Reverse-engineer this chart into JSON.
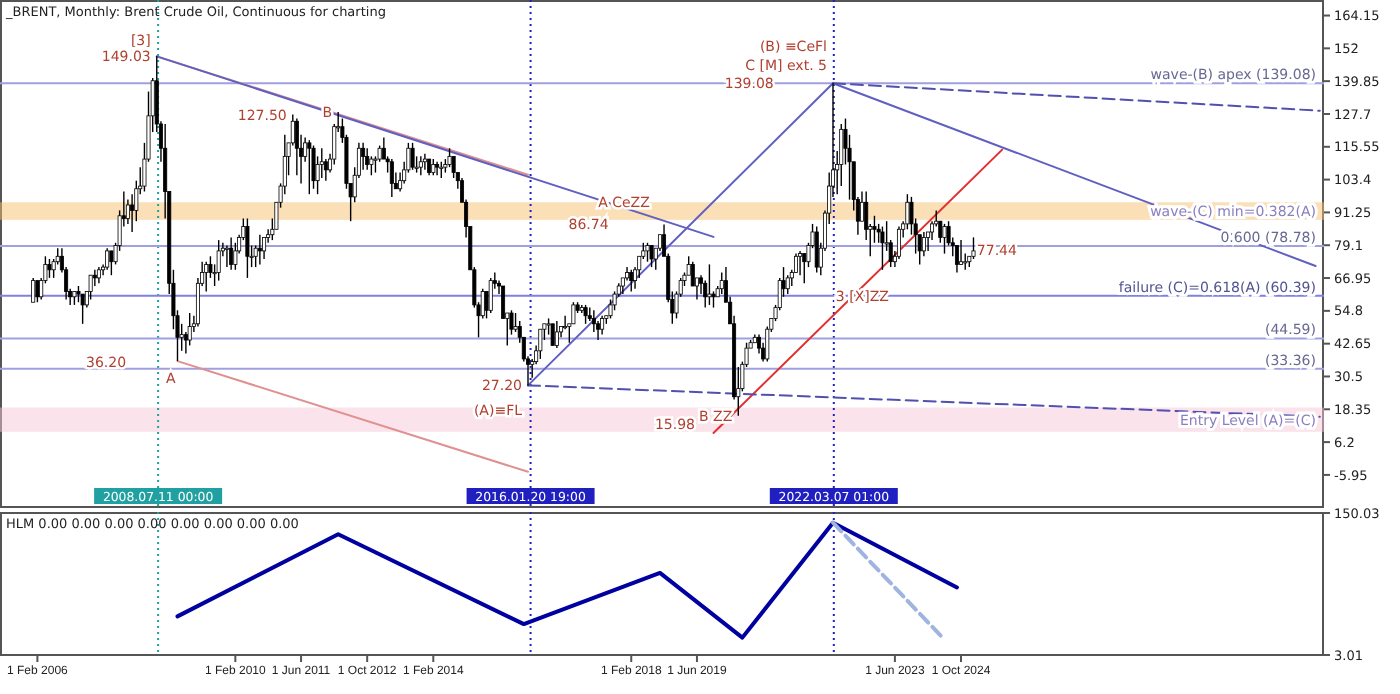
{
  "chart_data": [
    {
      "type": "candlestick",
      "title": "_BRENT, Monthly: Brent Crude Oil, Continuous for charting",
      "color": "#000000",
      "xlim": [
        "2005-05-01",
        "2032-02-01"
      ],
      "ylim": [
        -18.2,
        169.9
      ],
      "yticks": [
        164.15,
        152.0,
        139.85,
        127.7,
        115.55,
        103.4,
        91.25,
        79.1,
        66.95,
        54.8,
        42.65,
        30.5,
        18.35,
        6.2,
        -5.95
      ],
      "tick_labels": "y",
      "x": [
        "2006-01",
        "2006-02",
        "2006-03",
        "2006-04",
        "2006-05",
        "2006-06",
        "2006-07",
        "2006-08",
        "2006-09",
        "2006-10",
        "2006-11",
        "2006-12",
        "2007-01",
        "2007-02",
        "2007-03",
        "2007-04",
        "2007-05",
        "2007-06",
        "2007-07",
        "2007-08",
        "2007-09",
        "2007-10",
        "2007-11",
        "2007-12",
        "2008-01",
        "2008-02",
        "2008-03",
        "2008-04",
        "2008-05",
        "2008-06",
        "2008-07",
        "2008-08",
        "2008-09",
        "2008-10",
        "2008-11",
        "2008-12",
        "2009-01",
        "2009-02",
        "2009-03",
        "2009-04",
        "2009-05",
        "2009-06",
        "2009-07",
        "2009-08",
        "2009-09",
        "2009-10",
        "2009-11",
        "2009-12",
        "2010-01",
        "2010-02",
        "2010-03",
        "2010-04",
        "2010-05",
        "2010-06",
        "2010-07",
        "2010-08",
        "2010-09",
        "2010-10",
        "2010-11",
        "2010-12",
        "2011-01",
        "2011-02",
        "2011-03",
        "2011-04",
        "2011-05",
        "2011-06",
        "2011-07",
        "2011-08",
        "2011-09",
        "2011-10",
        "2011-11",
        "2011-12",
        "2012-01",
        "2012-02",
        "2012-03",
        "2012-04",
        "2012-05",
        "2012-06",
        "2012-07",
        "2012-08",
        "2012-09",
        "2012-10",
        "2012-11",
        "2012-12",
        "2013-01",
        "2013-02",
        "2013-03",
        "2013-04",
        "2013-05",
        "2013-06",
        "2013-07",
        "2013-08",
        "2013-09",
        "2013-10",
        "2013-11",
        "2013-12",
        "2014-01",
        "2014-02",
        "2014-03",
        "2014-04",
        "2014-05",
        "2014-06",
        "2014-07",
        "2014-08",
        "2014-09",
        "2014-10",
        "2014-11",
        "2014-12",
        "2015-01",
        "2015-02",
        "2015-03",
        "2015-04",
        "2015-05",
        "2015-06",
        "2015-07",
        "2015-08",
        "2015-09",
        "2015-10",
        "2015-11",
        "2015-12",
        "2016-01",
        "2016-02",
        "2016-03",
        "2016-04",
        "2016-05",
        "2016-06",
        "2016-07",
        "2016-08",
        "2016-09",
        "2016-10",
        "2016-11",
        "2016-12",
        "2017-01",
        "2017-02",
        "2017-03",
        "2017-04",
        "2017-05",
        "2017-06",
        "2017-07",
        "2017-08",
        "2017-09",
        "2017-10",
        "2017-11",
        "2017-12",
        "2018-01",
        "2018-02",
        "2018-03",
        "2018-04",
        "2018-05",
        "2018-06",
        "2018-07",
        "2018-08",
        "2018-09",
        "2018-10",
        "2018-11",
        "2018-12",
        "2019-01",
        "2019-02",
        "2019-03",
        "2019-04",
        "2019-05",
        "2019-06",
        "2019-07",
        "2019-08",
        "2019-09",
        "2019-10",
        "2019-11",
        "2019-12",
        "2020-01",
        "2020-02",
        "2020-03",
        "2020-04",
        "2020-05",
        "2020-06",
        "2020-07",
        "2020-08",
        "2020-09",
        "2020-10",
        "2020-11",
        "2020-12",
        "2021-01",
        "2021-02",
        "2021-03",
        "2021-04",
        "2021-05",
        "2021-06",
        "2021-07",
        "2021-08",
        "2021-09",
        "2021-10",
        "2021-11",
        "2021-12",
        "2022-01",
        "2022-02",
        "2022-03",
        "2022-04",
        "2022-05",
        "2022-06",
        "2022-07",
        "2022-08",
        "2022-09",
        "2022-10",
        "2022-11",
        "2022-12",
        "2023-01",
        "2023-02",
        "2023-03",
        "2023-04",
        "2023-05",
        "2023-06",
        "2023-07",
        "2023-08",
        "2023-09",
        "2023-10",
        "2023-11",
        "2023-12",
        "2024-01",
        "2024-02",
        "2024-03",
        "2024-04",
        "2024-05",
        "2024-06",
        "2024-07",
        "2024-08",
        "2024-09",
        "2024-10",
        "2024-11",
        "2024-12",
        "2025-01"
      ],
      "ohlc": [
        [
          58,
          67,
          58,
          66
        ],
        [
          66,
          66,
          58,
          60
        ],
        [
          60,
          67,
          59,
          66
        ],
        [
          66,
          75,
          65,
          72
        ],
        [
          72,
          74,
          67,
          70
        ],
        [
          70,
          74,
          67,
          73
        ],
        [
          73,
          78,
          72,
          75
        ],
        [
          75,
          78,
          69,
          70
        ],
        [
          70,
          71,
          59,
          62
        ],
        [
          62,
          63,
          57,
          60
        ],
        [
          60,
          62,
          57,
          62
        ],
        [
          62,
          64,
          58,
          61
        ],
        [
          61,
          61,
          50,
          57
        ],
        [
          57,
          62,
          56,
          62
        ],
        [
          62,
          68,
          59,
          68
        ],
        [
          68,
          70,
          64,
          67
        ],
        [
          67,
          71,
          65,
          70
        ],
        [
          70,
          72,
          68,
          71
        ],
        [
          71,
          78,
          70,
          77
        ],
        [
          77,
          77,
          68,
          73
        ],
        [
          73,
          80,
          72,
          79
        ],
        [
          79,
          92,
          77,
          90
        ],
        [
          90,
          99,
          86,
          89
        ],
        [
          89,
          96,
          87,
          94
        ],
        [
          94,
          98,
          84,
          92
        ],
        [
          92,
          103,
          88,
          100
        ],
        [
          100,
          108,
          98,
          101
        ],
        [
          101,
          117,
          99,
          111
        ],
        [
          111,
          136,
          110,
          127
        ],
        [
          127,
          141,
          121,
          140
        ],
        [
          140,
          149.03,
          121,
          124
        ],
        [
          124,
          125,
          110,
          115
        ],
        [
          115,
          124,
          89,
          99
        ],
        [
          99,
          99,
          61,
          65
        ],
        [
          65,
          70,
          48,
          53
        ],
        [
          53,
          55,
          36.2,
          45
        ],
        [
          45,
          50,
          40,
          46
        ],
        [
          46,
          47,
          39,
          44
        ],
        [
          44,
          54,
          42,
          49
        ],
        [
          49,
          53,
          47,
          50
        ],
        [
          50,
          67,
          49,
          65
        ],
        [
          65,
          73,
          64,
          69
        ],
        [
          69,
          73,
          62,
          72
        ],
        [
          72,
          75,
          67,
          69
        ],
        [
          69,
          72,
          64,
          69
        ],
        [
          69,
          81,
          66,
          77
        ],
        [
          77,
          80,
          75,
          78
        ],
        [
          78,
          79,
          71,
          78
        ],
        [
          78,
          82,
          70,
          72
        ],
        [
          72,
          80,
          70,
          77
        ],
        [
          77,
          83,
          76,
          82
        ],
        [
          82,
          89,
          81,
          86
        ],
        [
          86,
          89,
          67,
          75
        ],
        [
          75,
          79,
          71,
          75
        ],
        [
          75,
          79,
          71,
          78
        ],
        [
          78,
          83,
          72,
          77
        ],
        [
          77,
          82,
          74,
          82
        ],
        [
          82,
          85,
          80,
          83
        ],
        [
          83,
          89,
          81,
          85
        ],
        [
          85,
          95,
          85,
          95
        ],
        [
          95,
          102,
          93,
          101
        ],
        [
          101,
          120,
          98,
          112
        ],
        [
          112,
          117,
          105,
          117
        ],
        [
          117,
          127.5,
          116,
          125
        ],
        [
          125,
          126,
          105,
          115
        ],
        [
          115,
          120,
          102,
          112
        ],
        [
          112,
          119,
          110,
          117
        ],
        [
          117,
          118,
          98,
          115
        ],
        [
          115,
          116,
          100,
          103
        ],
        [
          103,
          112,
          98,
          109
        ],
        [
          109,
          115,
          104,
          110
        ],
        [
          110,
          111,
          103,
          107
        ],
        [
          107,
          113,
          106,
          111
        ],
        [
          111,
          124,
          109,
          123
        ],
        [
          123,
          128.4,
          121,
          123
        ],
        [
          123,
          126,
          117,
          119
        ],
        [
          119,
          120,
          100,
          102
        ],
        [
          102,
          102,
          88,
          97
        ],
        [
          97,
          108,
          95,
          105
        ],
        [
          105,
          117,
          104,
          115
        ],
        [
          115,
          117,
          107,
          112
        ],
        [
          112,
          115,
          107,
          109
        ],
        [
          109,
          112,
          105,
          111
        ],
        [
          111,
          112,
          106,
          111
        ],
        [
          111,
          116,
          110,
          115
        ],
        [
          115,
          119,
          111,
          111
        ],
        [
          111,
          112,
          106,
          110
        ],
        [
          110,
          111,
          97,
          102
        ],
        [
          102,
          106,
          100,
          100
        ],
        [
          100,
          106,
          99,
          103
        ],
        [
          103,
          110,
          102,
          107
        ],
        [
          107,
          117,
          106,
          115
        ],
        [
          115,
          117,
          107,
          108
        ],
        [
          108,
          112,
          106,
          108
        ],
        [
          108,
          112,
          105,
          110
        ],
        [
          110,
          113,
          107,
          111
        ],
        [
          111,
          111,
          105,
          106
        ],
        [
          106,
          111,
          105,
          109
        ],
        [
          109,
          110,
          105,
          108
        ],
        [
          108,
          110,
          104,
          108
        ],
        [
          108,
          111,
          106,
          109
        ],
        [
          109,
          115,
          108,
          112
        ],
        [
          112,
          112,
          104,
          106
        ],
        [
          106,
          106,
          100,
          103
        ],
        [
          103,
          104,
          95,
          95
        ],
        [
          95,
          96,
          82,
          86
        ],
        [
          86,
          86,
          70,
          70
        ],
        [
          70,
          71,
          56,
          57
        ],
        [
          57,
          58,
          45,
          53
        ],
        [
          53,
          63,
          52,
          62
        ],
        [
          62,
          62,
          52,
          55
        ],
        [
          55,
          67,
          54,
          66
        ],
        [
          66,
          69,
          63,
          65
        ],
        [
          65,
          66,
          61,
          64
        ],
        [
          64,
          64,
          52,
          52
        ],
        [
          52,
          54,
          42,
          54
        ],
        [
          54,
          55,
          46,
          48
        ],
        [
          48,
          54,
          47,
          49
        ],
        [
          49,
          51,
          43,
          45
        ],
        [
          45,
          45,
          36,
          37
        ],
        [
          37,
          38,
          27.2,
          35
        ],
        [
          35,
          37,
          30,
          36
        ],
        [
          36,
          42,
          35,
          40
        ],
        [
          40,
          48,
          37,
          48
        ],
        [
          48,
          50,
          44,
          50
        ],
        [
          50,
          52,
          46,
          50
        ],
        [
          50,
          50,
          42,
          42
        ],
        [
          42,
          51,
          41,
          47
        ],
        [
          47,
          49,
          45,
          49
        ],
        [
          49,
          53,
          48,
          49
        ],
        [
          49,
          50,
          43,
          50
        ],
        [
          50,
          58,
          50,
          57
        ],
        [
          57,
          58,
          54,
          55
        ],
        [
          55,
          57,
          54,
          56
        ],
        [
          56,
          57,
          50,
          53
        ],
        [
          53,
          56,
          51,
          52
        ],
        [
          52,
          55,
          47,
          50
        ],
        [
          50,
          51,
          44,
          48
        ],
        [
          48,
          53,
          46,
          52
        ],
        [
          52,
          53,
          50,
          53
        ],
        [
          53,
          59,
          52,
          57
        ],
        [
          57,
          62,
          55,
          61
        ],
        [
          61,
          65,
          60,
          64
        ],
        [
          64,
          67,
          61,
          67
        ],
        [
          67,
          71,
          66,
          69
        ],
        [
          69,
          70,
          62,
          66
        ],
        [
          66,
          71,
          63,
          70
        ],
        [
          70,
          75,
          67,
          75
        ],
        [
          75,
          80,
          74,
          77
        ],
        [
          77,
          80,
          73,
          79
        ],
        [
          79,
          79,
          71,
          74
        ],
        [
          74,
          78,
          70,
          78
        ],
        [
          78,
          83,
          77,
          83
        ],
        [
          83,
          86.74,
          75,
          75
        ],
        [
          75,
          76,
          58,
          59
        ],
        [
          59,
          62,
          50,
          54
        ],
        [
          54,
          62,
          52,
          61
        ],
        [
          61,
          67,
          60,
          66
        ],
        [
          66,
          69,
          64,
          68
        ],
        [
          68,
          75,
          68,
          72
        ],
        [
          72,
          73,
          64,
          64
        ],
        [
          64,
          67,
          59,
          67
        ],
        [
          67,
          68,
          61,
          65
        ],
        [
          65,
          66,
          56,
          60
        ],
        [
          60,
          72,
          57,
          61
        ],
        [
          61,
          62,
          56,
          60
        ],
        [
          60,
          64,
          60,
          63
        ],
        [
          63,
          69,
          61,
          66
        ],
        [
          66,
          71,
          58,
          58
        ],
        [
          58,
          60,
          50,
          50
        ],
        [
          50,
          53,
          22,
          23
        ],
        [
          23,
          34,
          15.98,
          26
        ],
        [
          26,
          36,
          25,
          35
        ],
        [
          35,
          43,
          34,
          41
        ],
        [
          41,
          44,
          41,
          43
        ],
        [
          43,
          46,
          43,
          45
        ],
        [
          45,
          46,
          39,
          41
        ],
        [
          41,
          43,
          36,
          37
        ],
        [
          37,
          49,
          36,
          48
        ],
        [
          48,
          52,
          47,
          52
        ],
        [
          52,
          57,
          51,
          56
        ],
        [
          56,
          67,
          55,
          66
        ],
        [
          66,
          71,
          60,
          63
        ],
        [
          63,
          68,
          61,
          67
        ],
        [
          67,
          70,
          64,
          69
        ],
        [
          69,
          76,
          69,
          75
        ],
        [
          75,
          77,
          68,
          76
        ],
        [
          76,
          76,
          65,
          73
        ],
        [
          73,
          80,
          71,
          79
        ],
        [
          79,
          87,
          78,
          84
        ],
        [
          84,
          86,
          69,
          71
        ],
        [
          71,
          80,
          68,
          78
        ],
        [
          78,
          92,
          77,
          91
        ],
        [
          91,
          106,
          87,
          101
        ],
        [
          101,
          139.08,
          97,
          107
        ],
        [
          107,
          114,
          98,
          109
        ],
        [
          109,
          124,
          101,
          122
        ],
        [
          122,
          126,
          109,
          115
        ],
        [
          115,
          120,
          96,
          110
        ],
        [
          110,
          110,
          92,
          96
        ],
        [
          96,
          97,
          83,
          88
        ],
        [
          88,
          99,
          88,
          95
        ],
        [
          95,
          99,
          81,
          85
        ],
        [
          85,
          87,
          75,
          86
        ],
        [
          86,
          90,
          80,
          85
        ],
        [
          85,
          87,
          80,
          84
        ],
        [
          84,
          86,
          70,
          80
        ],
        [
          80,
          88,
          77,
          80
        ],
        [
          80,
          81,
          71,
          73
        ],
        [
          73,
          77,
          71,
          75
        ],
        [
          75,
          86,
          74,
          85
        ],
        [
          85,
          88,
          82,
          87
        ],
        [
          87,
          98,
          85,
          95
        ],
        [
          95,
          97,
          83,
          87
        ],
        [
          87,
          89,
          76,
          83
        ],
        [
          83,
          83,
          72,
          77
        ],
        [
          77,
          84,
          75,
          82
        ],
        [
          82,
          84,
          77,
          84
        ],
        [
          84,
          88,
          81,
          87
        ],
        [
          87,
          92,
          86,
          88
        ],
        [
          88,
          88,
          80,
          82
        ],
        [
          82,
          87,
          76,
          86
        ],
        [
          86,
          88,
          79,
          80
        ],
        [
          80,
          82,
          75,
          79
        ],
        [
          79,
          79,
          69,
          72
        ],
        [
          72,
          81,
          72,
          73
        ],
        [
          73,
          76,
          70,
          73
        ],
        [
          73,
          75,
          71,
          75
        ],
        [
          75,
          82,
          74,
          77
        ]
      ],
      "series": [
        {
          "type": "line",
          "color": "#e09090",
          "x": [
            "2008-07",
            "2016-01"
          ],
          "values": [
            149.03,
            105.2
          ]
        },
        {
          "type": "line",
          "color": "#e09090",
          "x": [
            "2008-12",
            "2016-01"
          ],
          "values": [
            36.2,
            -4.8
          ]
        },
        {
          "type": "line",
          "color": "#6060c0",
          "x": [
            "2008-07",
            "2019-10"
          ],
          "values": [
            149.03,
            82.2
          ]
        },
        {
          "type": "line",
          "color": "#6060c0",
          "x": [
            "2016-01",
            "2022-03"
          ],
          "values": [
            27.2,
            139.08
          ]
        },
        {
          "type": "line",
          "color": "#6060c0",
          "x": [
            "2022-03",
            "2031-12"
          ],
          "values": [
            139.08,
            71.4
          ]
        },
        {
          "type": "line",
          "color": "#e03030",
          "x": [
            "2019-10",
            "2025-08"
          ],
          "values": [
            9.6,
            114.5
          ]
        },
        {
          "type": "line",
          "color": "#5050b0",
          "line_style": "dashed",
          "x": [
            "2016-01",
            "2032-01"
          ],
          "values": [
            27.2,
            15.6
          ]
        },
        {
          "type": "line",
          "color": "#5050b0",
          "line_style": "dashed",
          "x": [
            "2022-03",
            "2032-01"
          ],
          "values": [
            139.08,
            128.9
          ]
        }
      ],
      "ref_lines": [
        {
          "axis": "x",
          "value": "2008-07-11",
          "label": "2008.07.11 00:00",
          "color": "#20a0a0",
          "line_style": "dotted"
        },
        {
          "axis": "x",
          "value": "2016-01-20",
          "label": "2016.01.20 19:00",
          "color": "#2020c0",
          "line_style": "dotted"
        },
        {
          "axis": "x",
          "value": "2022-03-07",
          "label": "2022.03.07 01:00",
          "color": "#2020c0",
          "line_style": "dotted"
        },
        {
          "axis": "y",
          "value": 139.08,
          "label": "wave-(B) apex (139.08)",
          "color": "#a0a0e0"
        },
        {
          "axis": "y",
          "value": 78.78,
          "label": "0.600 (78.78)",
          "color": "#a0a0e0"
        },
        {
          "axis": "y",
          "value": 60.39,
          "label": "failure (C)=0.618(A) (60.39)",
          "color": "#8080e0"
        },
        {
          "axis": "y",
          "value": 44.59,
          "label": "(44.59)",
          "color": "#a0a0e0"
        },
        {
          "axis": "y",
          "value": 33.36,
          "label": "(33.36)",
          "color": "#a0a0e0"
        }
      ],
      "bands": [
        {
          "axis": "y",
          "from": 88.5,
          "to": 95,
          "label": "wave-(C) min=0.382(A)",
          "color": "#f5c070"
        },
        {
          "axis": "y",
          "from": 10,
          "to": 19,
          "label": "Entry Level (A)=(C)",
          "color": "#f8c8d8"
        }
      ],
      "annotations": [
        {
          "text": "[3]",
          "x": "2008-07",
          "y": 155
        },
        {
          "text": "149.03",
          "x": "2008-07",
          "y": 149.03
        },
        {
          "text": "A",
          "x": "2009-01",
          "y": 30
        },
        {
          "text": "36.20",
          "x": "2008-01",
          "y": 36
        },
        {
          "text": "B",
          "x": "2012-03",
          "y": 128.4
        },
        {
          "text": "127.50",
          "x": "2011-04",
          "y": 127.5
        },
        {
          "text": "(A)≡FL",
          "x": "2016-01",
          "y": 18
        },
        {
          "text": "27.20",
          "x": "2016-01",
          "y": 27.2
        },
        {
          "text": "A CeZZ",
          "x": "2018-08",
          "y": 95
        },
        {
          "text": "86.74",
          "x": "2017-10",
          "y": 87
        },
        {
          "text": "B ZZ",
          "x": "2020-04",
          "y": 15.98
        },
        {
          "text": "15.98",
          "x": "2019-07",
          "y": 13
        },
        {
          "text": "(B) ≡CeFl",
          "x": "2022-03",
          "y": 153
        },
        {
          "text": "C [M] ext. 5",
          "x": "2022-03",
          "y": 146
        },
        {
          "text": "139.08",
          "x": "2021-02",
          "y": 139
        },
        {
          "text": "3 [X]ZZ",
          "x": "2023-06",
          "y": 60.39
        },
        {
          "text": "77.44",
          "x": "2026-01",
          "y": 77.44
        }
      ]
    },
    {
      "type": "line",
      "title": "HLM 0.00 0.00 0.00 0.00 0.00 0.00 0.00 0.00",
      "xlim": [
        "2005-05-01",
        "2032-02-01"
      ],
      "ylim": [
        3.01,
        150.03
      ],
      "yticks": [
        150.03,
        3.01
      ],
      "xticks": [
        {
          "value": "2006-02-01",
          "label": "1 Feb 2006"
        },
        {
          "value": "2010-02-01",
          "label": "1 Feb 2010"
        },
        {
          "value": "2011-06-01",
          "label": "1 Jun 2011"
        },
        {
          "value": "2012-10-01",
          "label": "1 Oct 2012"
        },
        {
          "value": "2014-02-01",
          "label": "1 Feb 2014"
        },
        {
          "value": "2018-02-01",
          "label": "1 Feb 2018"
        },
        {
          "value": "2019-06-01",
          "label": "1 Jun 2019"
        },
        {
          "value": "2023-06-01",
          "label": "1 Jun 2023"
        },
        {
          "value": "2024-10-01",
          "label": "1 Oct 2024"
        }
      ],
      "series": [
        {
          "color": "#0000a0",
          "x": [
            "2008-12",
            "2012-03",
            "2015-12",
            "2018-09",
            "2020-05",
            "2022-03",
            "2024-09"
          ],
          "values": [
            43,
            128,
            35,
            88,
            21,
            140,
            73
          ]
        },
        {
          "color": "#a0b4e0",
          "line_style": "dashed",
          "x": [
            "2022-03",
            "2024-06"
          ],
          "values": [
            140,
            19
          ]
        }
      ],
      "ref_lines": [
        {
          "axis": "x",
          "value": "2008-07-11",
          "color": "#20a0a0",
          "line_style": "dotted"
        },
        {
          "axis": "x",
          "value": "2016-01-20",
          "color": "#2020c0",
          "line_style": "dotted"
        },
        {
          "axis": "x",
          "value": "2022-03-07",
          "color": "#2020c0",
          "line_style": "dotted"
        }
      ]
    }
  ]
}
